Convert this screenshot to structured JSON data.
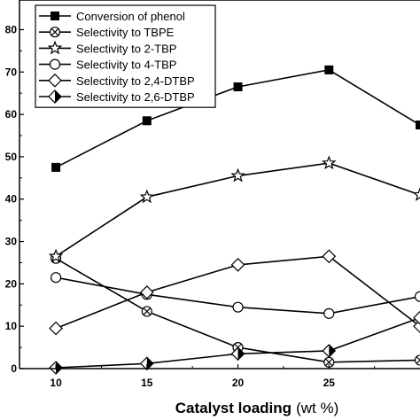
{
  "chart_data": {
    "type": "line",
    "xlabel": "Catalyst loading",
    "xlabel_unit": "(wt %)",
    "x": [
      10,
      15,
      20,
      25,
      30
    ],
    "x_ticks": [
      10,
      15,
      20,
      25
    ],
    "y_tick_labels": [
      "0",
      "10",
      "20",
      "30",
      "40",
      "50",
      "60",
      "70",
      "80"
    ],
    "xlim": [
      8,
      30
    ],
    "ylim": [
      0,
      87
    ],
    "grid": false,
    "legend_position": "top-left",
    "series": [
      {
        "name": "Conversion of phenol",
        "marker": "square-filled",
        "values": [
          47.5,
          58.5,
          66.5,
          70.5,
          57.5
        ]
      },
      {
        "name": "Selectivity to TBPE",
        "marker": "circle-cross",
        "values": [
          26.0,
          13.5,
          5.0,
          1.5,
          2.0
        ]
      },
      {
        "name": "Selectivity to 2-TBP",
        "marker": "star",
        "values": [
          26.5,
          40.5,
          45.5,
          48.5,
          41.0
        ]
      },
      {
        "name": "Selectivity to 4-TBP",
        "marker": "circle-open",
        "values": [
          21.5,
          17.5,
          14.5,
          13.0,
          17.0
        ]
      },
      {
        "name": "Selectivity to 2,4-DTBP",
        "marker": "diamond-open",
        "values": [
          9.5,
          18.0,
          24.5,
          26.5,
          10.0
        ]
      },
      {
        "name": "Selectivity to 2,6-DTBP",
        "marker": "diamond-half",
        "values": [
          0.2,
          1.2,
          3.5,
          4.2,
          12.0
        ]
      }
    ]
  }
}
